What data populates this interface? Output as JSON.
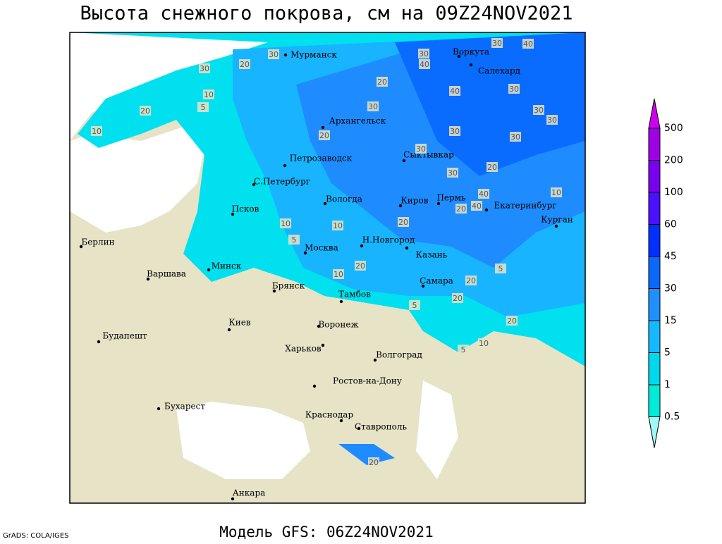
{
  "title": "Высота снежного покрова, см на 09Z24NOV2021",
  "footer": "Модель GFS: 06Z24NOV2021",
  "credit": "GrADS: COLA/IGES",
  "cities": [
    "Мурманск",
    "Воркута",
    "Салехард",
    "Архангельск",
    "Сыктывкар",
    "Петрозаводск",
    "С.Петербург",
    "Вологда",
    "Киров",
    "Пермь",
    "Екатеринбург",
    "Курган",
    "Псков",
    "Берлин",
    "Н.Новгород",
    "Москва",
    "Казань",
    "Минск",
    "Варшава",
    "Самара",
    "Брянск",
    "Тамбов",
    "Киев",
    "Воронеж",
    "Будапешт",
    "Харьков",
    "Волгоград",
    "Ростов-на-Дону",
    "Бухарест",
    "Краснодар",
    "Ставрополь",
    "Анкара"
  ],
  "contour_labels": [
    30,
    40,
    30,
    40,
    30,
    30,
    20,
    20,
    40,
    30,
    10,
    20,
    5,
    30,
    30,
    30,
    10,
    20,
    30,
    30,
    30,
    30,
    20,
    40,
    20,
    40,
    10,
    10,
    10,
    20,
    5,
    10,
    20,
    5,
    20,
    5,
    20,
    20,
    10,
    5,
    20
  ],
  "legend": {
    "levels": [
      500,
      200,
      100,
      60,
      45,
      30,
      15,
      5,
      1,
      0.5
    ],
    "colors": [
      "#d000f0",
      "#a000e6",
      "#7a00f0",
      "#4a10ff",
      "#0030ff",
      "#0a68ff",
      "#1e90ff",
      "#16b8ff",
      "#00d8f0",
      "#00ecd8",
      "#a0f8f8"
    ]
  }
}
